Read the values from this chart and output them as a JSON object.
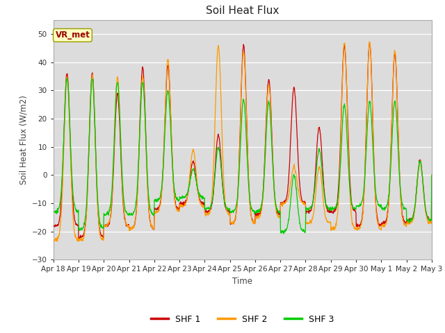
{
  "title": "Soil Heat Flux",
  "ylabel": "Soil Heat Flux (W/m2)",
  "xlabel": "Time",
  "ylim": [
    -30,
    55
  ],
  "legend_labels": [
    "SHF 1",
    "SHF 2",
    "SHF 3"
  ],
  "line_colors": [
    "#cc0000",
    "#ff9900",
    "#00cc00"
  ],
  "annotation_text": "VR_met",
  "annotation_color": "#990000",
  "fig_bg": "#ffffff",
  "axes_bg": "#dcdcdc",
  "grid_color": "#ffffff",
  "tick_labels": [
    "Apr 18",
    "Apr 19",
    "Apr 20",
    "Apr 21",
    "Apr 22",
    "Apr 23",
    "Apr 24",
    "Apr 25",
    "Apr 26",
    "Apr 27",
    "Apr 28",
    "Apr 29",
    "Apr 30",
    "May 1",
    "May 2",
    "May 3"
  ],
  "n_days": 15,
  "points_per_day": 96
}
